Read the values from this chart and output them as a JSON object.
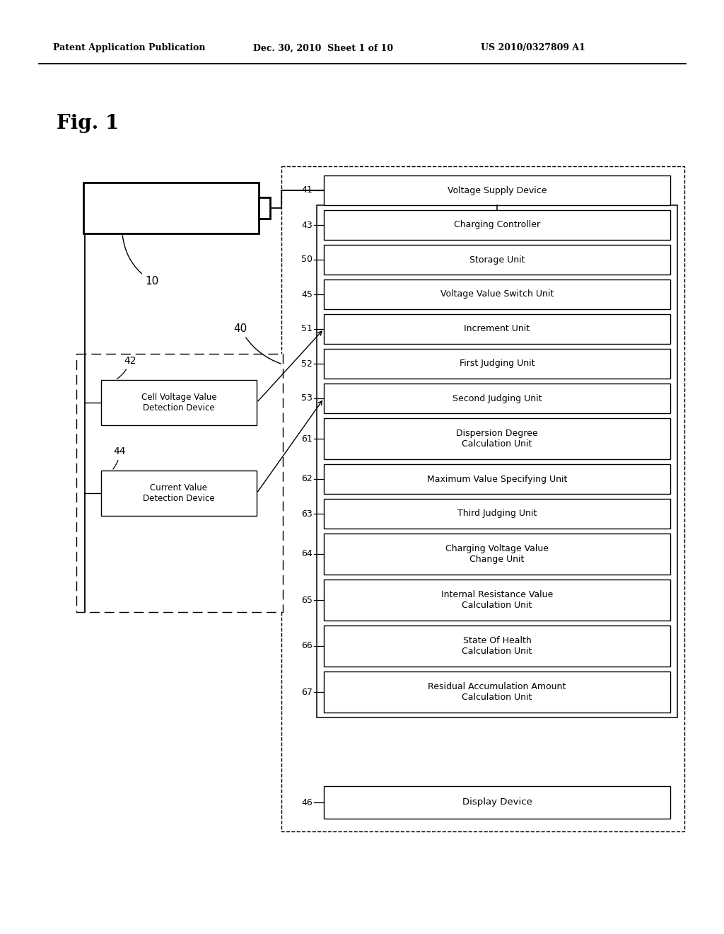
{
  "header_left": "Patent Application Publication",
  "header_mid": "Dec. 30, 2010  Sheet 1 of 10",
  "header_right": "US 2010/0327809 A1",
  "fig_label": "Fig. 1",
  "bg_color": "#ffffff",
  "right_boxes": [
    {
      "label": "Voltage Supply Device",
      "num": "41",
      "double": false
    },
    {
      "label": "Charging Controller",
      "num": "43",
      "double": false
    },
    {
      "label": "Storage Unit",
      "num": "50",
      "double": false
    },
    {
      "label": "Voltage Value Switch Unit",
      "num": "45",
      "double": false
    },
    {
      "label": "Increment Unit",
      "num": "51",
      "double": false
    },
    {
      "label": "First Judging Unit",
      "num": "52",
      "double": false
    },
    {
      "label": "Second Judging Unit",
      "num": "53",
      "double": false
    },
    {
      "label": "Dispersion Degree\nCalculation Unit",
      "num": "61",
      "double": true
    },
    {
      "label": "Maximum Value Specifying Unit",
      "num": "62",
      "double": false
    },
    {
      "label": "Third Judging Unit",
      "num": "63",
      "double": false
    },
    {
      "label": "Charging Voltage Value\nChange Unit",
      "num": "64",
      "double": true
    },
    {
      "label": "Internal Resistance Value\nCalculation Unit",
      "num": "65",
      "double": true
    },
    {
      "label": "State Of Health\nCalculation Unit",
      "num": "66",
      "double": true
    },
    {
      "label": "Residual Accumulation Amount\nCalculation Unit",
      "num": "67",
      "double": true
    }
  ],
  "bottom_box": {
    "label": "Display Device",
    "num": "46"
  },
  "left_boxes": [
    {
      "label": "Cell Voltage Value\nDetection Device",
      "num": "42",
      "connect_idx": 4
    },
    {
      "label": "Current Value\nDetection Device",
      "num": "44",
      "connect_idx": 6
    }
  ]
}
